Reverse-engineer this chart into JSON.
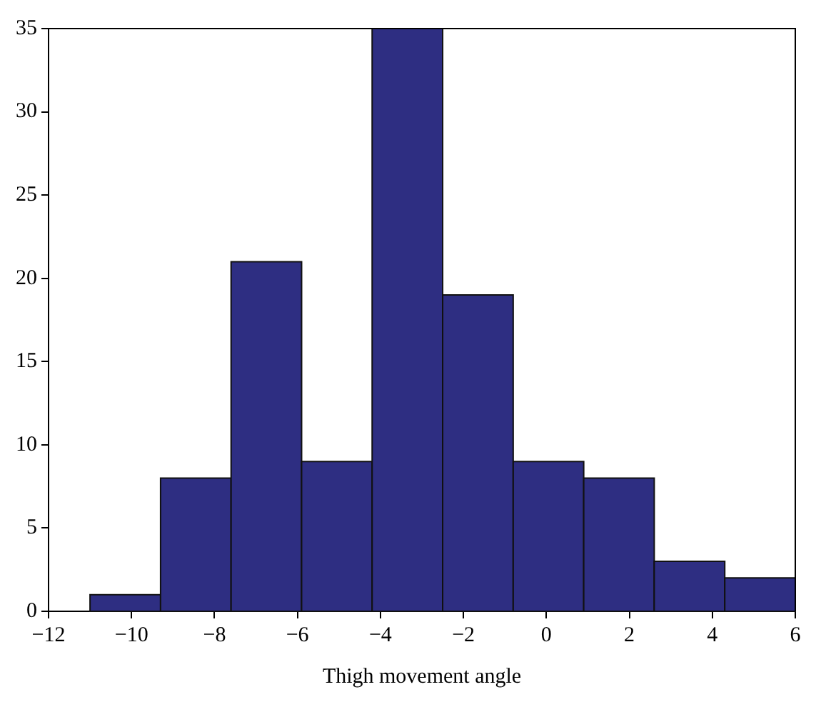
{
  "chart_data": {
    "type": "histogram",
    "xlabel": "Thigh movement angle",
    "bins": [
      -11,
      -9.3,
      -7.6,
      -5.9,
      -4.2,
      -2.5,
      -0.8,
      0.9,
      2.6,
      4.3,
      6
    ],
    "values": [
      1,
      8,
      21,
      9,
      35,
      19,
      9,
      8,
      3,
      2
    ],
    "color": "#2e2e82",
    "xlim": [
      -12,
      6
    ],
    "xticks": [
      {
        "value": -12,
        "label": "−12"
      },
      {
        "value": -10,
        "label": "−10"
      },
      {
        "value": -8,
        "label": "−8"
      },
      {
        "value": -6,
        "label": "−6"
      },
      {
        "value": -4,
        "label": "−4"
      },
      {
        "value": -2,
        "label": "−2"
      },
      0,
      2,
      4,
      6
    ],
    "ylim": [
      0,
      35
    ],
    "yticks": [
      0,
      5,
      10,
      15,
      20,
      25,
      30,
      35
    ],
    "grid": false
  }
}
